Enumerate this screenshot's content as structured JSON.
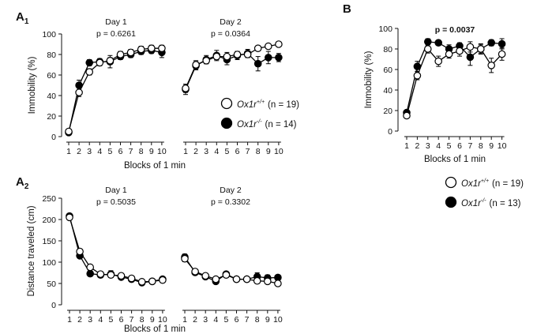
{
  "panels": {
    "A": {
      "letter": "A",
      "sub1": "1",
      "sub2": "2"
    },
    "B": {
      "letter": "B"
    }
  },
  "legend": {
    "wt": {
      "genotype": "Ox1r",
      "superscript": "+/+"
    },
    "ko": {
      "genotype": "Ox1r",
      "superscript": "-/-"
    },
    "a_wt_n": "(n = 19)",
    "a_ko_n": "(n = 14)",
    "b_wt_n": "(n = 19)",
    "b_ko_n": "(n = 13)"
  },
  "chart_data": [
    {
      "id": "A1",
      "type": "line",
      "ylabel": "Immobility (%)",
      "xlabel": "Blocks of 1 min",
      "ylim": [
        0,
        100
      ],
      "yticks": [
        0,
        20,
        40,
        60,
        80,
        100
      ],
      "categories": [
        "1",
        "2",
        "3",
        "4",
        "5",
        "6",
        "7",
        "8",
        "9",
        "10"
      ],
      "groups": [
        {
          "day": "Day 1",
          "pvalue": "p = 0.6261",
          "series": [
            {
              "name": "Ox1r+/+",
              "values": [
                5,
                43,
                63,
                72,
                74,
                80,
                82,
                85,
                86,
                86
              ],
              "errors": [
                2,
                4,
                3,
                3,
                3,
                3,
                3,
                3,
                3,
                3
              ]
            },
            {
              "name": "Ox1r-/-",
              "values": [
                4,
                50,
                72,
                73,
                73,
                78,
                80,
                83,
                84,
                82
              ],
              "errors": [
                2,
                5,
                3,
                3,
                6,
                3,
                3,
                3,
                3,
                5
              ]
            }
          ]
        },
        {
          "day": "Day 2",
          "pvalue": "p = 0.0364",
          "series": [
            {
              "name": "Ox1r+/+",
              "values": [
                47,
                70,
                74,
                78,
                78,
                80,
                80,
                86,
                88,
                90
              ],
              "errors": [
                4,
                4,
                3,
                3,
                4,
                3,
                3,
                2,
                2,
                2
              ]
            },
            {
              "name": "Ox1r-/-",
              "values": [
                46,
                69,
                75,
                79,
                75,
                79,
                81,
                71,
                77,
                77
              ],
              "errors": [
                5,
                4,
                4,
                5,
                5,
                4,
                4,
                7,
                6,
                4
              ]
            }
          ]
        }
      ]
    },
    {
      "id": "A2",
      "type": "line",
      "ylabel": "Distance traveled (cm)",
      "xlabel": "Blocks of 1 min",
      "ylim": [
        0,
        250
      ],
      "yticks": [
        0,
        50,
        100,
        150,
        200,
        250
      ],
      "categories": [
        "1",
        "2",
        "3",
        "4",
        "5",
        "6",
        "7",
        "8",
        "9",
        "10"
      ],
      "groups": [
        {
          "day": "Day 1",
          "pvalue": "p = 0.5035",
          "series": [
            {
              "name": "Ox1r+/+",
              "values": [
                205,
                125,
                88,
                72,
                70,
                68,
                62,
                54,
                55,
                58
              ],
              "errors": [
                6,
                6,
                5,
                4,
                5,
                4,
                4,
                4,
                4,
                4
              ]
            },
            {
              "name": "Ox1r-/-",
              "values": [
                208,
                115,
                73,
                70,
                72,
                65,
                60,
                52,
                55,
                60
              ],
              "errors": [
                6,
                6,
                5,
                4,
                8,
                4,
                4,
                4,
                4,
                4
              ]
            }
          ]
        },
        {
          "day": "Day 2",
          "pvalue": "p = 0.3302",
          "series": [
            {
              "name": "Ox1r+/+",
              "values": [
                108,
                78,
                68,
                60,
                70,
                60,
                60,
                56,
                55,
                50
              ],
              "errors": [
                7,
                5,
                5,
                5,
                5,
                4,
                4,
                5,
                5,
                4
              ]
            },
            {
              "name": "Ox1r-/-",
              "values": [
                112,
                76,
                66,
                55,
                72,
                60,
                60,
                66,
                63,
                64
              ],
              "errors": [
                7,
                5,
                5,
                6,
                5,
                4,
                4,
                9,
                7,
                5
              ]
            }
          ]
        }
      ]
    },
    {
      "id": "B",
      "type": "line",
      "ylabel": "Immobility (%)",
      "xlabel": "Blocks of 1 min",
      "ylim": [
        0,
        100
      ],
      "yticks": [
        0,
        20,
        40,
        60,
        80,
        100
      ],
      "categories": [
        "1",
        "2",
        "3",
        "4",
        "5",
        "6",
        "7",
        "8",
        "9",
        "10"
      ],
      "groups": [
        {
          "day": "",
          "pvalue": "p = 0.0037",
          "series": [
            {
              "name": "Ox1r+/+",
              "values": [
                15,
                54,
                80,
                68,
                75,
                78,
                82,
                80,
                64,
                75
              ],
              "errors": [
                2,
                4,
                4,
                5,
                4,
                5,
                5,
                5,
                7,
                6
              ]
            },
            {
              "name": "Ox1r-/-",
              "values": [
                18,
                63,
                87,
                86,
                80,
                83,
                72,
                80,
                86,
                85
              ],
              "errors": [
                2,
                5,
                3,
                2,
                4,
                3,
                8,
                4,
                3,
                5
              ]
            }
          ]
        }
      ]
    }
  ]
}
